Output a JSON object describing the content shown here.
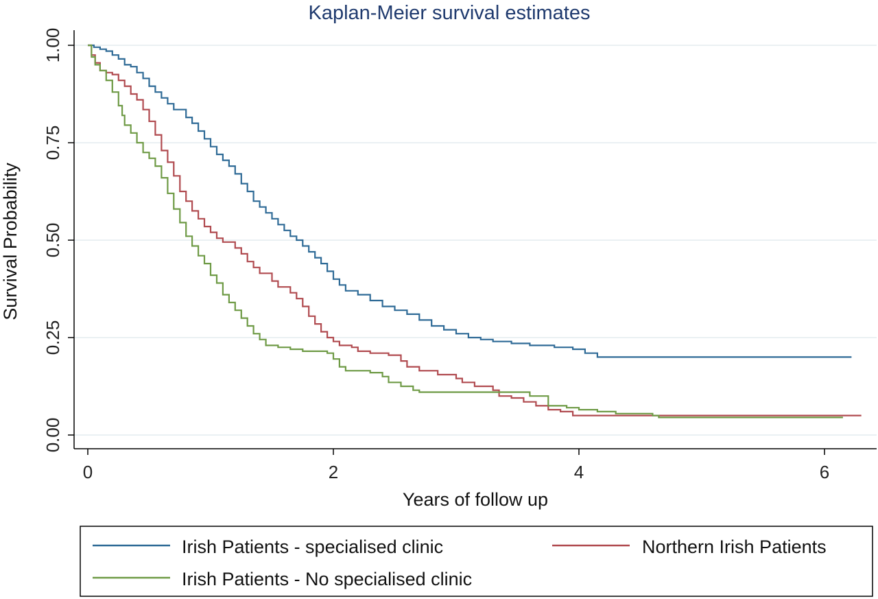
{
  "chart_data": {
    "type": "line",
    "title": "Kaplan-Meier survival estimates",
    "xlabel": "Years of follow up",
    "ylabel": "Survival Probability",
    "xlim": [
      0,
      6.4
    ],
    "ylim": [
      0,
      1
    ],
    "xticks": [
      0,
      2,
      4,
      6
    ],
    "xtick_labels": [
      "0",
      "2",
      "4",
      "6"
    ],
    "yticks": [
      0,
      0.25,
      0.5,
      0.75,
      1.0
    ],
    "ytick_labels": [
      "0.00",
      "0.25",
      "0.50",
      "0.75",
      "1.00"
    ],
    "grid": "horizontal",
    "legend_position": "bottom",
    "colors": {
      "title": "#1f3a6e",
      "grid": "#e3ecef",
      "axis": "#000000"
    },
    "series": [
      {
        "name": "Irish Patients - specialised clinic",
        "color": "#2e6a96",
        "points": [
          [
            0,
            1.0
          ],
          [
            0.05,
            0.995
          ],
          [
            0.1,
            0.99
          ],
          [
            0.15,
            0.985
          ],
          [
            0.2,
            0.975
          ],
          [
            0.25,
            0.965
          ],
          [
            0.3,
            0.95
          ],
          [
            0.35,
            0.945
          ],
          [
            0.4,
            0.93
          ],
          [
            0.45,
            0.915
          ],
          [
            0.5,
            0.895
          ],
          [
            0.55,
            0.88
          ],
          [
            0.6,
            0.865
          ],
          [
            0.65,
            0.85
          ],
          [
            0.7,
            0.835
          ],
          [
            0.8,
            0.815
          ],
          [
            0.85,
            0.8
          ],
          [
            0.9,
            0.78
          ],
          [
            0.95,
            0.76
          ],
          [
            1.0,
            0.74
          ],
          [
            1.05,
            0.72
          ],
          [
            1.1,
            0.705
          ],
          [
            1.15,
            0.69
          ],
          [
            1.2,
            0.67
          ],
          [
            1.25,
            0.645
          ],
          [
            1.3,
            0.625
          ],
          [
            1.35,
            0.6
          ],
          [
            1.4,
            0.585
          ],
          [
            1.45,
            0.57
          ],
          [
            1.5,
            0.555
          ],
          [
            1.55,
            0.54
          ],
          [
            1.6,
            0.525
          ],
          [
            1.65,
            0.51
          ],
          [
            1.7,
            0.5
          ],
          [
            1.75,
            0.485
          ],
          [
            1.8,
            0.47
          ],
          [
            1.85,
            0.455
          ],
          [
            1.9,
            0.44
          ],
          [
            1.95,
            0.42
          ],
          [
            2.0,
            0.4
          ],
          [
            2.05,
            0.385
          ],
          [
            2.1,
            0.37
          ],
          [
            2.2,
            0.36
          ],
          [
            2.3,
            0.345
          ],
          [
            2.4,
            0.33
          ],
          [
            2.5,
            0.32
          ],
          [
            2.6,
            0.31
          ],
          [
            2.7,
            0.295
          ],
          [
            2.8,
            0.28
          ],
          [
            2.9,
            0.27
          ],
          [
            3.0,
            0.26
          ],
          [
            3.1,
            0.25
          ],
          [
            3.2,
            0.245
          ],
          [
            3.3,
            0.24
          ],
          [
            3.45,
            0.235
          ],
          [
            3.6,
            0.23
          ],
          [
            3.8,
            0.225
          ],
          [
            3.95,
            0.22
          ],
          [
            4.05,
            0.21
          ],
          [
            4.15,
            0.2
          ],
          [
            4.5,
            0.2
          ],
          [
            5.0,
            0.2
          ],
          [
            5.5,
            0.2
          ],
          [
            6.0,
            0.2
          ],
          [
            6.22,
            0.2
          ]
        ]
      },
      {
        "name": "Northern Irish Patients",
        "color": "#b04a4f",
        "points": [
          [
            0,
            1.0
          ],
          [
            0.03,
            0.975
          ],
          [
            0.06,
            0.955
          ],
          [
            0.1,
            0.935
          ],
          [
            0.15,
            0.93
          ],
          [
            0.2,
            0.925
          ],
          [
            0.25,
            0.91
          ],
          [
            0.3,
            0.895
          ],
          [
            0.35,
            0.875
          ],
          [
            0.4,
            0.86
          ],
          [
            0.45,
            0.835
          ],
          [
            0.5,
            0.805
          ],
          [
            0.55,
            0.77
          ],
          [
            0.6,
            0.73
          ],
          [
            0.65,
            0.7
          ],
          [
            0.7,
            0.665
          ],
          [
            0.75,
            0.625
          ],
          [
            0.8,
            0.6
          ],
          [
            0.85,
            0.575
          ],
          [
            0.9,
            0.555
          ],
          [
            0.95,
            0.535
          ],
          [
            1.0,
            0.52
          ],
          [
            1.05,
            0.505
          ],
          [
            1.1,
            0.495
          ],
          [
            1.2,
            0.48
          ],
          [
            1.25,
            0.465
          ],
          [
            1.3,
            0.445
          ],
          [
            1.35,
            0.43
          ],
          [
            1.4,
            0.415
          ],
          [
            1.5,
            0.395
          ],
          [
            1.55,
            0.38
          ],
          [
            1.65,
            0.365
          ],
          [
            1.7,
            0.35
          ],
          [
            1.75,
            0.33
          ],
          [
            1.8,
            0.305
          ],
          [
            1.85,
            0.285
          ],
          [
            1.9,
            0.265
          ],
          [
            1.95,
            0.25
          ],
          [
            2.0,
            0.24
          ],
          [
            2.05,
            0.23
          ],
          [
            2.15,
            0.225
          ],
          [
            2.2,
            0.215
          ],
          [
            2.3,
            0.21
          ],
          [
            2.45,
            0.205
          ],
          [
            2.55,
            0.19
          ],
          [
            2.6,
            0.175
          ],
          [
            2.7,
            0.165
          ],
          [
            2.85,
            0.155
          ],
          [
            3.0,
            0.145
          ],
          [
            3.05,
            0.135
          ],
          [
            3.15,
            0.125
          ],
          [
            3.3,
            0.115
          ],
          [
            3.35,
            0.1
          ],
          [
            3.45,
            0.095
          ],
          [
            3.55,
            0.085
          ],
          [
            3.65,
            0.075
          ],
          [
            3.75,
            0.065
          ],
          [
            3.85,
            0.06
          ],
          [
            3.95,
            0.05
          ],
          [
            4.2,
            0.05
          ],
          [
            4.6,
            0.05
          ],
          [
            5.2,
            0.05
          ],
          [
            5.8,
            0.05
          ],
          [
            6.3,
            0.05
          ]
        ]
      },
      {
        "name": "Irish Patients - No specialised clinic",
        "color": "#6e9a45",
        "points": [
          [
            0,
            1.0
          ],
          [
            0.03,
            0.97
          ],
          [
            0.06,
            0.95
          ],
          [
            0.1,
            0.935
          ],
          [
            0.15,
            0.91
          ],
          [
            0.2,
            0.88
          ],
          [
            0.25,
            0.845
          ],
          [
            0.28,
            0.82
          ],
          [
            0.3,
            0.795
          ],
          [
            0.35,
            0.775
          ],
          [
            0.4,
            0.75
          ],
          [
            0.45,
            0.725
          ],
          [
            0.5,
            0.71
          ],
          [
            0.55,
            0.69
          ],
          [
            0.6,
            0.66
          ],
          [
            0.65,
            0.62
          ],
          [
            0.7,
            0.58
          ],
          [
            0.75,
            0.545
          ],
          [
            0.8,
            0.51
          ],
          [
            0.85,
            0.485
          ],
          [
            0.9,
            0.46
          ],
          [
            0.95,
            0.44
          ],
          [
            1.0,
            0.41
          ],
          [
            1.05,
            0.39
          ],
          [
            1.1,
            0.36
          ],
          [
            1.15,
            0.34
          ],
          [
            1.2,
            0.32
          ],
          [
            1.25,
            0.3
          ],
          [
            1.3,
            0.28
          ],
          [
            1.35,
            0.26
          ],
          [
            1.4,
            0.245
          ],
          [
            1.45,
            0.23
          ],
          [
            1.55,
            0.225
          ],
          [
            1.65,
            0.22
          ],
          [
            1.75,
            0.215
          ],
          [
            1.95,
            0.21
          ],
          [
            2.0,
            0.195
          ],
          [
            2.05,
            0.175
          ],
          [
            2.1,
            0.165
          ],
          [
            2.3,
            0.16
          ],
          [
            2.4,
            0.15
          ],
          [
            2.45,
            0.135
          ],
          [
            2.55,
            0.125
          ],
          [
            2.65,
            0.115
          ],
          [
            2.7,
            0.11
          ],
          [
            2.9,
            0.11
          ],
          [
            3.3,
            0.11
          ],
          [
            3.55,
            0.11
          ],
          [
            3.6,
            0.1
          ],
          [
            3.75,
            0.075
          ],
          [
            3.9,
            0.07
          ],
          [
            4.0,
            0.065
          ],
          [
            4.15,
            0.06
          ],
          [
            4.3,
            0.055
          ],
          [
            4.6,
            0.05
          ],
          [
            4.65,
            0.045
          ],
          [
            5.0,
            0.045
          ],
          [
            5.5,
            0.045
          ],
          [
            6.0,
            0.045
          ],
          [
            6.15,
            0.045
          ]
        ]
      }
    ]
  }
}
